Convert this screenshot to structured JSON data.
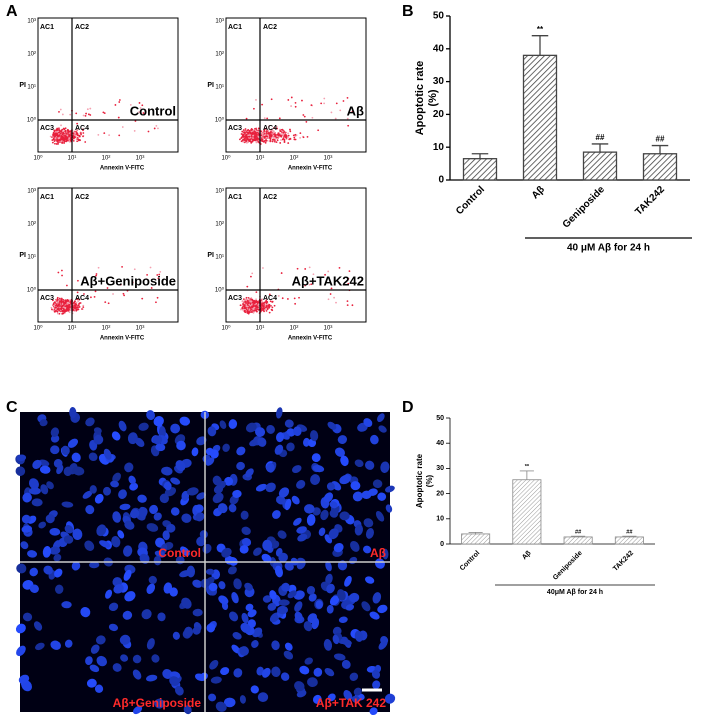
{
  "panel_labels": [
    "A",
    "B",
    "C",
    "D"
  ],
  "flow_cytometry": {
    "y_label": "PI",
    "x_label": "Annexin V-FITC",
    "quadrants": [
      "AC1",
      "AC2",
      "AC3",
      "AC4"
    ],
    "ticks": [
      "10⁰",
      "10¹",
      "10²",
      "10³"
    ],
    "groups": [
      "Control",
      "Aβ",
      "Aβ+Geniposide",
      "Aβ+TAK242"
    ]
  },
  "micrographs": {
    "groups": [
      "Control",
      "Aβ",
      "Aβ+Geniposide",
      "Aβ+TAK 242"
    ]
  },
  "chart_data": [
    {
      "type": "bar",
      "ylabel": [
        "Apoptotic rate",
        "(%)"
      ],
      "categories": [
        "Control",
        "Aβ",
        "Geniposide",
        "TAK242"
      ],
      "values": [
        6.5,
        38,
        8.5,
        8
      ],
      "errors": [
        1.5,
        6,
        2.5,
        2.5
      ],
      "significance": [
        null,
        "**",
        "##",
        "##"
      ],
      "ylim": [
        0,
        50
      ],
      "yticks": [
        0,
        10,
        20,
        30,
        40,
        50
      ],
      "bracket_label": "40 μM Aβ  for 24 h",
      "color": "#444444"
    },
    {
      "type": "bar",
      "ylabel": [
        "Apoptotic rate",
        "(%)"
      ],
      "categories": [
        "Control",
        "Aβ",
        "Geniposide",
        "TAK242"
      ],
      "values": [
        4,
        25.5,
        2.8,
        2.8
      ],
      "errors": [
        0.6,
        3.5,
        0.3,
        0.3
      ],
      "significance": [
        null,
        "**",
        "##",
        "##"
      ],
      "ylim": [
        0,
        50
      ],
      "yticks": [
        0,
        10,
        20,
        30,
        40,
        50
      ],
      "bracket_label": "40μM Aβ  for 24 h",
      "color": "#888888"
    }
  ]
}
